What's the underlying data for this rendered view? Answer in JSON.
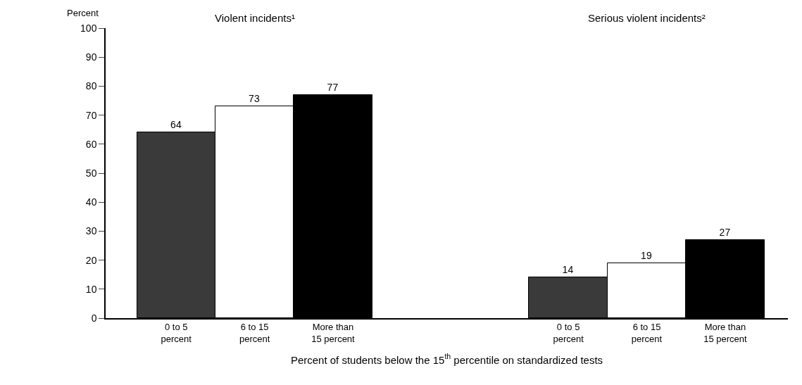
{
  "chart_data": {
    "type": "bar",
    "ylabel": "Percent",
    "xlabel": "Percent of students below the 15$^{th}$ percentile on standardized tests",
    "annotations": [
      "Violent incidents¹",
      "Serious violent incidents²"
    ],
    "categories": [
      "0 to 5\npercent",
      "6 to 15\npercent",
      "More than\n15 percent",
      null,
      null,
      "0 to 5\npercent",
      "6 to 15\npercent",
      "More than\n15 percent"
    ],
    "values": [
      64,
      73,
      77,
      null,
      null,
      14,
      19,
      27
    ],
    "colors": [
      "#3a3a3a",
      "#ffffff",
      "#000000",
      null,
      null,
      "#3a3a3a",
      "#ffffff",
      "#000000"
    ],
    "ylim": [
      0,
      100
    ],
    "yticks": [
      0,
      10,
      20,
      30,
      40,
      50,
      60,
      70,
      80,
      90,
      100
    ],
    "grid": false,
    "data_labels": true
  }
}
